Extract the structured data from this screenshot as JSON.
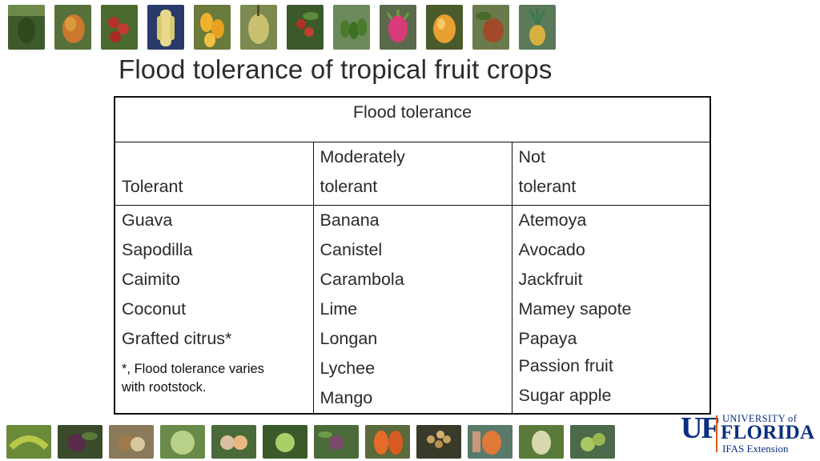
{
  "slide": {
    "title": "Flood tolerance of tropical fruit crops"
  },
  "table": {
    "header": "Flood tolerance",
    "columns": [
      {
        "heading_line1": "",
        "heading_line2": "Tolerant"
      },
      {
        "heading_line1": "Moderately",
        "heading_line2": "tolerant"
      },
      {
        "heading_line1": "Not",
        "heading_line2": "tolerant"
      }
    ],
    "tolerant": [
      "Guava",
      "Sapodilla",
      "Caimito",
      "Coconut",
      "Grafted citrus*"
    ],
    "tolerant_footnote_line1": "*, Flood tolerance varies",
    "tolerant_footnote_line2": "with rootstock.",
    "moderately_tolerant": [
      "Banana",
      "Canistel",
      "Carambola",
      "Lime",
      "Longan",
      "Lychee",
      "Mango"
    ],
    "not_tolerant": [
      "Atemoya",
      "Avocado",
      "Jackfruit",
      "Mamey sapote",
      "Papaya",
      "Passion fruit",
      "Sugar apple"
    ]
  },
  "logo": {
    "mark": "UF",
    "university": "UNIVERSITY of",
    "state": "FLORIDA",
    "unit": "IFAS Extension"
  },
  "colors": {
    "logo_blue": "#0b2e80",
    "logo_orange": "#e05a13",
    "border": "#111111"
  },
  "top_photos": [
    "avocado-photo",
    "mango-photo",
    "lychee-photo",
    "banana-photo",
    "carambola-photo",
    "jackfruit-photo",
    "coffee-cherry-photo",
    "papaya-tree-photo",
    "dragon-fruit-photo",
    "canistel-photo",
    "mamey-photo",
    "pineapple-photo"
  ],
  "bottom_photos": [
    "banana-bunch-photo",
    "caimito-photo",
    "sapodilla-photo",
    "sugar-apple-photo",
    "guava-photo",
    "lime-photo",
    "fig-photo",
    "papaya-cut-photo",
    "longan-photo",
    "mango-cut-photo",
    "soursop-photo",
    "citrus-photo"
  ]
}
